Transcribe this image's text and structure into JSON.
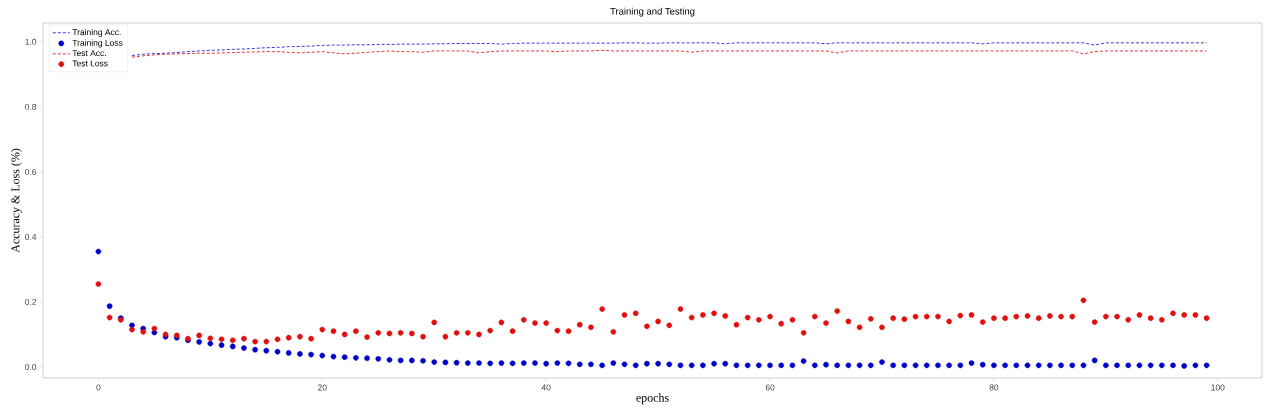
{
  "chart_data": {
    "type": "line",
    "title": "Training and Testing",
    "xlabel": "epochs",
    "ylabel": "Accuracy & Loss (%)",
    "x": [
      0,
      1,
      2,
      3,
      4,
      5,
      6,
      7,
      8,
      9,
      10,
      11,
      12,
      13,
      14,
      15,
      16,
      17,
      18,
      19,
      20,
      21,
      22,
      23,
      24,
      25,
      26,
      27,
      28,
      29,
      30,
      31,
      32,
      33,
      34,
      35,
      36,
      37,
      38,
      39,
      40,
      41,
      42,
      43,
      44,
      45,
      46,
      47,
      48,
      49,
      50,
      51,
      52,
      53,
      54,
      55,
      56,
      57,
      58,
      59,
      60,
      61,
      62,
      63,
      64,
      65,
      66,
      67,
      68,
      69,
      70,
      71,
      72,
      73,
      74,
      75,
      76,
      77,
      78,
      79,
      80,
      81,
      82,
      83,
      84,
      85,
      86,
      87,
      88,
      89,
      90,
      91,
      92,
      93,
      94,
      95,
      96,
      97,
      98,
      99
    ],
    "xlim": [
      -4.95,
      103.95
    ],
    "ylim": [
      -0.034,
      1.058
    ],
    "xticks": [
      0,
      20,
      40,
      60,
      80,
      100
    ],
    "yticks": [
      {
        "value": 0,
        "label": "0.0"
      },
      {
        "value": 0.2,
        "label": "0.2"
      },
      {
        "value": 0.4,
        "label": "0.4"
      },
      {
        "value": 0.6,
        "label": "0.6"
      },
      {
        "value": 0.8,
        "label": "0.8"
      },
      {
        "value": 1.0,
        "label": "1.0"
      }
    ],
    "grid": false,
    "legend": "top left",
    "series": [
      {
        "name": "Training Acc.",
        "line_style": "dashed",
        "marker": "none",
        "color": "#3a3ae0",
        "values": [
          null,
          null,
          null,
          0.958,
          0.962,
          0.964,
          0.965,
          0.967,
          0.97,
          0.972,
          0.974,
          0.975,
          0.977,
          0.978,
          0.98,
          0.982,
          0.983,
          0.985,
          0.986,
          0.987,
          0.989,
          0.99,
          0.99,
          0.991,
          0.991,
          0.992,
          0.992,
          0.993,
          0.993,
          0.993,
          0.994,
          0.994,
          0.995,
          0.995,
          0.995,
          0.995,
          0.993,
          0.995,
          0.996,
          0.996,
          0.996,
          0.996,
          0.996,
          0.996,
          0.996,
          0.996,
          0.996,
          0.997,
          0.997,
          0.996,
          0.996,
          0.997,
          0.997,
          0.997,
          0.997,
          0.997,
          0.994,
          0.997,
          0.997,
          0.997,
          0.997,
          0.997,
          0.997,
          0.997,
          0.997,
          0.994,
          0.997,
          0.997,
          0.997,
          0.997,
          0.997,
          0.997,
          0.997,
          0.997,
          0.997,
          0.997,
          0.997,
          0.997,
          0.997,
          0.994,
          0.997,
          0.997,
          0.997,
          0.997,
          0.997,
          0.997,
          0.997,
          0.997,
          0.997,
          0.99,
          0.997,
          0.997,
          0.997,
          0.997,
          0.997,
          0.997,
          0.997,
          0.997,
          0.997,
          0.997
        ]
      },
      {
        "name": "Training Loss",
        "type": "scatter",
        "marker": "circle",
        "color": "#0000cc",
        "values": [
          0.355,
          0.187,
          0.15,
          0.128,
          0.118,
          0.106,
          0.093,
          0.09,
          0.082,
          0.077,
          0.072,
          0.067,
          0.063,
          0.058,
          0.053,
          0.05,
          0.047,
          0.043,
          0.04,
          0.038,
          0.035,
          0.032,
          0.03,
          0.028,
          0.027,
          0.025,
          0.022,
          0.02,
          0.02,
          0.019,
          0.015,
          0.014,
          0.013,
          0.012,
          0.012,
          0.011,
          0.012,
          0.011,
          0.012,
          0.012,
          0.01,
          0.012,
          0.011,
          0.008,
          0.008,
          0.005,
          0.012,
          0.008,
          0.005,
          0.01,
          0.01,
          0.008,
          0.005,
          0.005,
          0.005,
          0.01,
          0.01,
          0.005,
          0.005,
          0.005,
          0.005,
          0.005,
          0.005,
          0.018,
          0.005,
          0.007,
          0.005,
          0.005,
          0.005,
          0.005,
          0.015,
          0.005,
          0.005,
          0.005,
          0.005,
          0.005,
          0.005,
          0.005,
          0.012,
          0.007,
          0.005,
          0.005,
          0.005,
          0.005,
          0.005,
          0.005,
          0.005,
          0.005,
          0.005,
          0.02,
          0.005,
          0.005,
          0.005,
          0.005,
          0.005,
          0.005,
          0.005,
          0.003,
          0.005,
          0.005
        ]
      },
      {
        "name": "Test Acc.",
        "line_style": "dashed",
        "marker": "none",
        "color": "#e03a3a",
        "values": [
          null,
          null,
          null,
          0.953,
          0.957,
          0.96,
          0.962,
          0.963,
          0.964,
          0.965,
          0.965,
          0.966,
          0.967,
          0.968,
          0.969,
          0.97,
          0.97,
          0.968,
          0.966,
          0.968,
          0.97,
          0.966,
          0.963,
          0.965,
          0.968,
          0.97,
          0.972,
          0.97,
          0.97,
          0.968,
          0.972,
          0.972,
          0.972,
          0.972,
          0.966,
          0.97,
          0.972,
          0.972,
          0.972,
          0.972,
          0.972,
          0.97,
          0.972,
          0.972,
          0.972,
          0.974,
          0.972,
          0.972,
          0.972,
          0.972,
          0.972,
          0.972,
          0.972,
          0.968,
          0.972,
          0.972,
          0.972,
          0.972,
          0.972,
          0.972,
          0.972,
          0.972,
          0.972,
          0.972,
          0.972,
          0.972,
          0.966,
          0.972,
          0.972,
          0.972,
          0.972,
          0.972,
          0.972,
          0.972,
          0.972,
          0.972,
          0.972,
          0.972,
          0.972,
          0.972,
          0.972,
          0.972,
          0.972,
          0.972,
          0.972,
          0.972,
          0.972,
          0.972,
          0.963,
          0.97,
          0.972,
          0.972,
          0.972,
          0.972,
          0.972,
          0.972,
          0.972,
          0.972,
          0.972,
          0.972
        ]
      },
      {
        "name": "Test Loss",
        "type": "scatter",
        "marker": "circle",
        "color": "#e01010",
        "values": [
          0.255,
          0.152,
          0.145,
          0.115,
          0.108,
          0.118,
          0.1,
          0.097,
          0.087,
          0.097,
          0.088,
          0.085,
          0.082,
          0.087,
          0.078,
          0.078,
          0.085,
          0.09,
          0.093,
          0.087,
          0.115,
          0.11,
          0.1,
          0.11,
          0.092,
          0.105,
          0.103,
          0.105,
          0.103,
          0.093,
          0.137,
          0.093,
          0.105,
          0.105,
          0.1,
          0.112,
          0.137,
          0.11,
          0.145,
          0.135,
          0.135,
          0.112,
          0.11,
          0.13,
          0.122,
          0.178,
          0.108,
          0.16,
          0.165,
          0.125,
          0.14,
          0.128,
          0.178,
          0.152,
          0.16,
          0.165,
          0.157,
          0.13,
          0.152,
          0.145,
          0.155,
          0.133,
          0.145,
          0.105,
          0.155,
          0.135,
          0.172,
          0.14,
          0.122,
          0.148,
          0.122,
          0.15,
          0.147,
          0.155,
          0.155,
          0.155,
          0.14,
          0.158,
          0.16,
          0.138,
          0.15,
          0.15,
          0.155,
          0.157,
          0.15,
          0.157,
          0.155,
          0.155,
          0.205,
          0.138,
          0.155,
          0.155,
          0.145,
          0.16,
          0.15,
          0.145,
          0.165,
          0.16,
          0.16,
          0.15
        ]
      }
    ]
  }
}
